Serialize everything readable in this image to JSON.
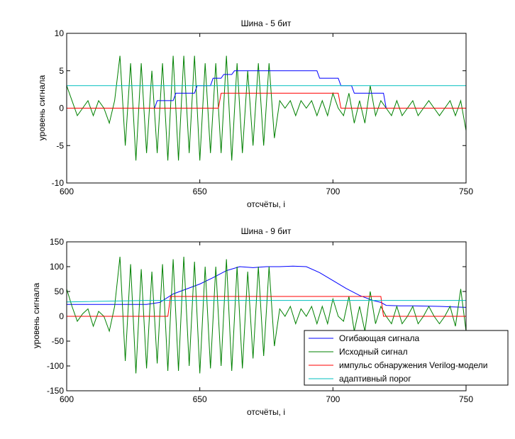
{
  "chart_data": [
    {
      "type": "line",
      "title": "Шина - 5 бит",
      "xlabel": "отсчёты, i",
      "ylabel": "уровень сигнала",
      "xlim": [
        600,
        750
      ],
      "ylim": [
        -10,
        10
      ],
      "xticks": [
        600,
        650,
        700,
        750
      ],
      "yticks": [
        -10,
        -5,
        0,
        5,
        10
      ],
      "grid": false,
      "series": [
        {
          "color": "#008000",
          "x": [
            600,
            602,
            604,
            606,
            608,
            610,
            612,
            614,
            616,
            618,
            620,
            622,
            624,
            626,
            628,
            630,
            632,
            634,
            636,
            638,
            640,
            642,
            644,
            646,
            648,
            650,
            652,
            654,
            656,
            658,
            660,
            662,
            664,
            666,
            668,
            670,
            672,
            674,
            676,
            678,
            680,
            682,
            684,
            686,
            688,
            690,
            692,
            694,
            696,
            698,
            700,
            702,
            704,
            706,
            708,
            710,
            712,
            714,
            716,
            718,
            720,
            722,
            724,
            726,
            728,
            730,
            732,
            734,
            736,
            738,
            740,
            742,
            744,
            746,
            748,
            750
          ],
          "y": [
            3,
            1,
            -1,
            0,
            1,
            -1,
            1,
            0,
            -2,
            1,
            7,
            -5,
            6,
            -7,
            6,
            -6,
            5,
            -6,
            6,
            -7,
            7,
            -7,
            7,
            -6,
            7,
            -7,
            6,
            -6,
            6,
            -6,
            7,
            -7,
            6,
            -6,
            5,
            -5,
            6,
            -5,
            6,
            -4,
            1,
            0,
            1,
            -1,
            1,
            0,
            1,
            -1,
            1,
            -1,
            2,
            0,
            -1,
            2,
            -2,
            1,
            -2,
            3,
            -1,
            1,
            0,
            -1,
            1,
            -1,
            0,
            1,
            -1,
            0,
            1,
            0,
            -1,
            0,
            1,
            -1,
            1,
            -3
          ]
        },
        {
          "color": "#0000ff",
          "x": [
            600,
            633,
            634,
            640,
            641,
            648,
            649,
            654,
            655,
            658,
            659,
            662,
            663,
            694,
            695,
            702,
            703,
            707,
            708,
            719,
            720,
            750
          ],
          "y": [
            0,
            0,
            1,
            1,
            2,
            2,
            3,
            3,
            4,
            4,
            4.5,
            4.5,
            5,
            5,
            4,
            4,
            3,
            3,
            2,
            2,
            0,
            0
          ]
        },
        {
          "color": "#ff0000",
          "x": [
            600,
            657,
            658,
            702,
            703,
            718,
            719,
            750
          ],
          "y": [
            0,
            0,
            2,
            2,
            0,
            0,
            0,
            0
          ]
        },
        {
          "color": "#00bfbf",
          "x": [
            600,
            750
          ],
          "y": [
            3,
            3
          ]
        }
      ]
    },
    {
      "type": "line",
      "title": "Шина - 9 бит",
      "xlabel": "отсчёты, i",
      "ylabel": "уровень сигнала",
      "xlim": [
        600,
        750
      ],
      "ylim": [
        -150,
        150
      ],
      "xticks": [
        600,
        650,
        700,
        750
      ],
      "yticks": [
        -150,
        -100,
        -50,
        0,
        50,
        100,
        150
      ],
      "grid": false,
      "legend_position": "bottom-right",
      "series": [
        {
          "name": "Огибающая сигнала",
          "color": "#0000ff",
          "x": [
            600,
            630,
            635,
            640,
            645,
            650,
            655,
            660,
            665,
            670,
            675,
            680,
            685,
            690,
            695,
            700,
            705,
            710,
            715,
            718,
            720,
            725,
            730,
            740,
            750
          ],
          "y": [
            24,
            24,
            28,
            45,
            55,
            65,
            78,
            92,
            100,
            98,
            100,
            100,
            101,
            100,
            88,
            72,
            56,
            42,
            32,
            28,
            22,
            21,
            21,
            20,
            18
          ]
        },
        {
          "name": "Исходный сигнал",
          "color": "#008000",
          "x": [
            600,
            602,
            604,
            606,
            608,
            610,
            612,
            614,
            616,
            618,
            620,
            622,
            624,
            626,
            628,
            630,
            632,
            634,
            636,
            638,
            640,
            642,
            644,
            646,
            648,
            650,
            652,
            654,
            656,
            658,
            660,
            662,
            664,
            666,
            668,
            670,
            672,
            674,
            676,
            678,
            680,
            682,
            684,
            686,
            688,
            690,
            692,
            694,
            696,
            698,
            700,
            702,
            704,
            706,
            708,
            710,
            712,
            714,
            716,
            718,
            720,
            722,
            724,
            726,
            728,
            730,
            732,
            734,
            736,
            738,
            740,
            742,
            744,
            746,
            748,
            750
          ],
          "y": [
            55,
            20,
            -10,
            5,
            15,
            -20,
            10,
            0,
            -30,
            20,
            120,
            -90,
            105,
            -115,
            95,
            -105,
            90,
            -95,
            105,
            -110,
            115,
            -110,
            120,
            -100,
            110,
            -115,
            100,
            -105,
            100,
            -100,
            115,
            -110,
            100,
            -105,
            90,
            -85,
            100,
            -80,
            100,
            -60,
            15,
            0,
            20,
            -15,
            15,
            0,
            20,
            -15,
            20,
            -15,
            35,
            0,
            -10,
            40,
            -30,
            20,
            -30,
            50,
            -15,
            20,
            0,
            -15,
            20,
            -15,
            0,
            20,
            -15,
            0,
            20,
            0,
            -15,
            0,
            20,
            -20,
            55,
            -30
          ]
        },
        {
          "name": "импульс обнаружения Verilog-модели",
          "color": "#ff0000",
          "x": [
            600,
            638,
            639,
            718,
            719,
            750
          ],
          "y": [
            0,
            0,
            40,
            40,
            0,
            0
          ]
        },
        {
          "name": "адаптивный порог",
          "color": "#00bfbf",
          "x": [
            600,
            630,
            650,
            700,
            718,
            750
          ],
          "y": [
            29,
            32,
            32,
            32,
            32,
            32
          ]
        }
      ]
    }
  ]
}
